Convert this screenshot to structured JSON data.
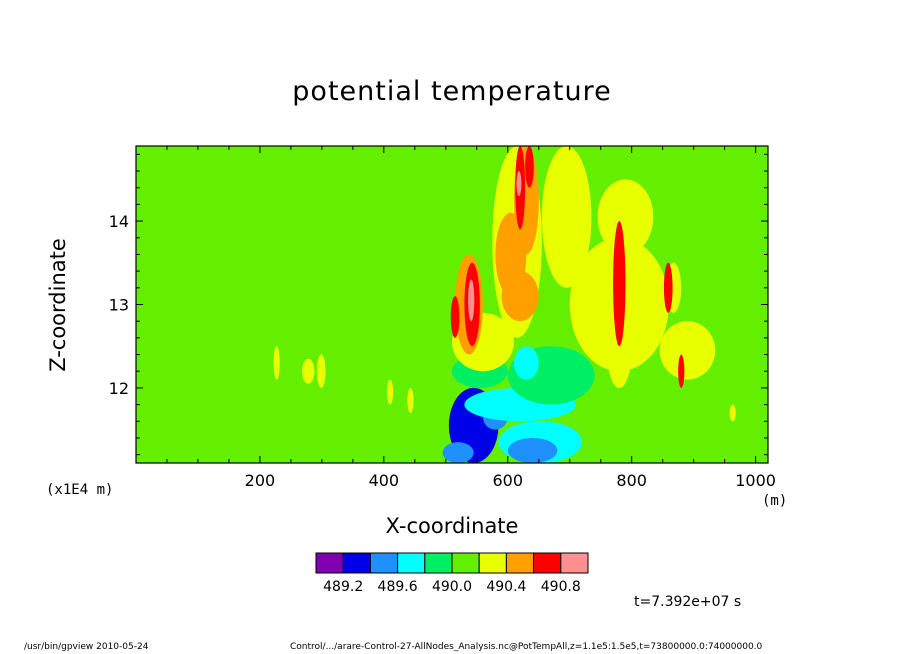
{
  "chart_data": {
    "type": "heatmap",
    "title": "potential temperature",
    "xlabel": "X-coordinate",
    "ylabel": "Z-coordinate",
    "x_unit": "(m)",
    "y_unit": "(x1E4 m)",
    "xlim": [
      0,
      1020
    ],
    "ylim": [
      11.1,
      14.9
    ],
    "x_ticks": [
      200,
      400,
      600,
      800,
      1000
    ],
    "x_tick_labels": [
      "200",
      "400",
      "600",
      "800",
      "1000"
    ],
    "y_ticks": [
      12,
      13,
      14
    ],
    "y_tick_labels": [
      "12",
      "13",
      "14"
    ],
    "background_value": 490.2,
    "colorbar": {
      "colors": [
        "#8000b0",
        "#0000e8",
        "#1e90ff",
        "#00ffff",
        "#00ee64",
        "#64ee00",
        "#e8ff00",
        "#ffa000",
        "#ff0000",
        "#ff9090"
      ],
      "tick_labels": [
        "489.2",
        "489.6",
        "490.0",
        "490.4",
        "490.8"
      ]
    },
    "features": [
      {
        "x": [
          505,
          585
        ],
        "z": [
          11.1,
          12.0
        ],
        "band": 1
      },
      {
        "x": [
          495,
          545
        ],
        "z": [
          11.1,
          11.35
        ],
        "band": 2
      },
      {
        "x": [
          520,
          575
        ],
        "z": [
          11.35,
          11.75
        ],
        "band": 1
      },
      {
        "x": [
          560,
          600
        ],
        "z": [
          11.5,
          11.8
        ],
        "band": 2
      },
      {
        "x": [
          585,
          720
        ],
        "z": [
          11.1,
          11.6
        ],
        "band": 3
      },
      {
        "x": [
          600,
          680
        ],
        "z": [
          11.1,
          11.4
        ],
        "band": 2
      },
      {
        "x": [
          530,
          710
        ],
        "z": [
          11.6,
          12.0
        ],
        "band": 3
      },
      {
        "x": [
          510,
          600
        ],
        "z": [
          12.0,
          12.4
        ],
        "band": 4
      },
      {
        "x": [
          600,
          740
        ],
        "z": [
          11.8,
          12.5
        ],
        "band": 4
      },
      {
        "x": [
          610,
          650
        ],
        "z": [
          12.1,
          12.5
        ],
        "band": 3
      },
      {
        "x": [
          510,
          610
        ],
        "z": [
          12.2,
          12.9
        ],
        "band": 6
      },
      {
        "x": [
          575,
          655
        ],
        "z": [
          12.6,
          14.9
        ],
        "band": 6
      },
      {
        "x": [
          655,
          735
        ],
        "z": [
          13.2,
          14.9
        ],
        "band": 6
      },
      {
        "x": [
          745,
          835
        ],
        "z": [
          13.6,
          14.5
        ],
        "band": 6
      },
      {
        "x": [
          700,
          860
        ],
        "z": [
          12.2,
          13.8
        ],
        "band": 6
      },
      {
        "x": [
          845,
          935
        ],
        "z": [
          12.1,
          12.8
        ],
        "band": 6
      },
      {
        "x": [
          855,
          880
        ],
        "z": [
          12.9,
          13.5
        ],
        "band": 6
      },
      {
        "x": [
          760,
          800
        ],
        "z": [
          12.0,
          12.9
        ],
        "band": 6
      },
      {
        "x": [
          515,
          560
        ],
        "z": [
          12.4,
          13.6
        ],
        "band": 7
      },
      {
        "x": [
          580,
          630
        ],
        "z": [
          13.1,
          14.1
        ],
        "band": 7
      },
      {
        "x": [
          610,
          650
        ],
        "z": [
          13.6,
          14.9
        ],
        "band": 7
      },
      {
        "x": [
          590,
          650
        ],
        "z": [
          12.8,
          13.4
        ],
        "band": 7
      },
      {
        "x": [
          530,
          555
        ],
        "z": [
          12.5,
          13.5
        ],
        "band": 8
      },
      {
        "x": [
          508,
          522
        ],
        "z": [
          12.6,
          13.1
        ],
        "band": 8
      },
      {
        "x": [
          612,
          628
        ],
        "z": [
          13.9,
          14.9
        ],
        "band": 8
      },
      {
        "x": [
          628,
          642
        ],
        "z": [
          14.4,
          14.9
        ],
        "band": 8
      },
      {
        "x": [
          770,
          790
        ],
        "z": [
          12.5,
          14.0
        ],
        "band": 8
      },
      {
        "x": [
          852,
          866
        ],
        "z": [
          12.9,
          13.5
        ],
        "band": 8
      },
      {
        "x": [
          875,
          885
        ],
        "z": [
          12.0,
          12.4
        ],
        "band": 8
      },
      {
        "x": [
          536,
          546
        ],
        "z": [
          12.8,
          13.3
        ],
        "band": 9
      },
      {
        "x": [
          614,
          622
        ],
        "z": [
          14.3,
          14.6
        ],
        "band": 9
      },
      {
        "x": [
          222,
          232
        ],
        "z": [
          12.1,
          12.5
        ],
        "band": 6
      },
      {
        "x": [
          268,
          288
        ],
        "z": [
          12.05,
          12.35
        ],
        "band": 6
      },
      {
        "x": [
          292,
          306
        ],
        "z": [
          12.0,
          12.4
        ],
        "band": 6
      },
      {
        "x": [
          438,
          448
        ],
        "z": [
          11.7,
          12.0
        ],
        "band": 6
      },
      {
        "x": [
          405,
          415
        ],
        "z": [
          11.8,
          12.1
        ],
        "band": 6
      },
      {
        "x": [
          958,
          968
        ],
        "z": [
          11.6,
          11.8
        ],
        "band": 6
      }
    ]
  },
  "time_label": "t=7.392e+07 s",
  "footer_left": "/usr/bin/gpview   2010-05-24",
  "footer_right": "Control/.../arare-Control-27-AllNodes_Analysis.nc@PotTempAll,z=1.1e5:1.5e5,t=73800000.0:74000000.0"
}
